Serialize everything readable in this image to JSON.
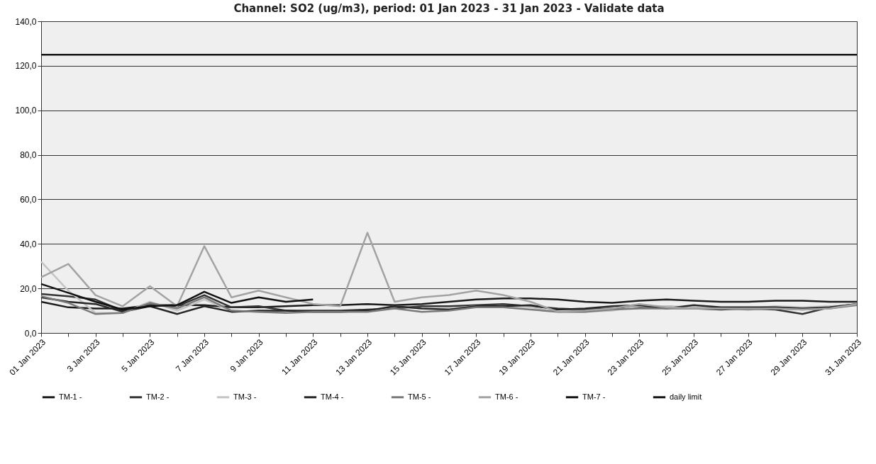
{
  "chart_data": {
    "type": "line",
    "title": "Channel: SO2 (ug/m3), period: 01 Jan 2023 - 31 Jan 2023 - Validate data",
    "categories": [
      "01 Jan 2023",
      null,
      "3 Jan 2023",
      null,
      "5 Jan 2023",
      null,
      "7 Jan 2023",
      null,
      "9 Jan 2023",
      null,
      "11 Jan 2023",
      null,
      "13 Jan 2023",
      null,
      "15 Jan 2023",
      null,
      "17 Jan 2023",
      null,
      "19 Jan 2023",
      null,
      "21 Jan 2023",
      null,
      "23 Jan 2023",
      null,
      "25 Jan 2023",
      null,
      "27 Jan 2023",
      null,
      "29 Jan 2023",
      null,
      "31 Jan 2023"
    ],
    "series": [
      {
        "name": "TM-1 -",
        "color": "#1a1a1a",
        "values": [
          14,
          11.5,
          11,
          11,
          12.5,
          12.5,
          12.5,
          11.5,
          11.5,
          12,
          12.5,
          12.5,
          13,
          12.5,
          13,
          14,
          15,
          15.5,
          15.5,
          15,
          14,
          13.5,
          14.5,
          15,
          14.5,
          14,
          14,
          14.5,
          14.5,
          14,
          14
        ]
      },
      {
        "name": "TM-2 -",
        "color": "#333333",
        "values": [
          17.5,
          16.5,
          15,
          10,
          12.5,
          12,
          17,
          11.5,
          12,
          10,
          10,
          10,
          10.5,
          11,
          12,
          12,
          12.5,
          13,
          12,
          11,
          10.5,
          11,
          11.5,
          12,
          11,
          10.5,
          11,
          10.5,
          8.5,
          11.5,
          13
        ]
      },
      {
        "name": "TM-3 -",
        "color": "#c4c4c4",
        "values": [
          32,
          19,
          9,
          9,
          14,
          10,
          15,
          10,
          9.5,
          9.5,
          null,
          null,
          9.5,
          12,
          11,
          11,
          12,
          12,
          11.5,
          9.5,
          9.5,
          10,
          12,
          12,
          11.5,
          11,
          11,
          12,
          11.5,
          12,
          12.5
        ]
      },
      {
        "name": "TM-4 -",
        "color": "#262626",
        "values": [
          16,
          14,
          13,
          9.5,
          12,
          8.5,
          12,
          9.5,
          10,
          10,
          9.5,
          9.5,
          10,
          12,
          11,
          10.5,
          12,
          12,
          12.5,
          10.5,
          11,
          12,
          12.5,
          11,
          12.5,
          11.5,
          11.5,
          11.5,
          11,
          11.5,
          13
        ]
      },
      {
        "name": "TM-5 -",
        "color": "#7a7a7a",
        "values": [
          16.5,
          13.5,
          8.5,
          9,
          13.5,
          11,
          16,
          10,
          9.5,
          9,
          9.5,
          9.5,
          9.5,
          11,
          9.5,
          10,
          11.5,
          11.5,
          10.5,
          9.5,
          9.5,
          10.5,
          11,
          11,
          11,
          11,
          10.5,
          11,
          10.5,
          11,
          12.5
        ]
      },
      {
        "name": "TM-6 -",
        "color": "#a3a3a3",
        "values": [
          25,
          31,
          17,
          12,
          21,
          12,
          39,
          16,
          19,
          16,
          13,
          12,
          45,
          14,
          16,
          17,
          19,
          17,
          14,
          9.5,
          10,
          11,
          13,
          11.5,
          11,
          11,
          11,
          11,
          10.5,
          11,
          13
        ]
      },
      {
        "name": "TM-7 -",
        "color": "#111111",
        "values": [
          22,
          18,
          14,
          10.5,
          12,
          12.5,
          18.5,
          13.5,
          16,
          14,
          15,
          null,
          null,
          null,
          null,
          null,
          null,
          null,
          null,
          null,
          null,
          null,
          null,
          null,
          null,
          null,
          null,
          null,
          null,
          null,
          null
        ]
      },
      {
        "name": "daily limit",
        "color": "#141414",
        "values": [
          125,
          125,
          125,
          125,
          125,
          125,
          125,
          125,
          125,
          125,
          125,
          125,
          125,
          125,
          125,
          125,
          125,
          125,
          125,
          125,
          125,
          125,
          125,
          125,
          125,
          125,
          125,
          125,
          125,
          125,
          125
        ]
      }
    ],
    "ylim": [
      0,
      140
    ],
    "yticks": [
      {
        "value": 0,
        "label": "0,0"
      },
      {
        "value": 20,
        "label": "20,0"
      },
      {
        "value": 40,
        "label": "40,0"
      },
      {
        "value": 60,
        "label": "60,0"
      },
      {
        "value": 80,
        "label": "80,0"
      },
      {
        "value": 100,
        "label": "100,0"
      },
      {
        "value": 120,
        "label": "120,0"
      },
      {
        "value": 140,
        "label": "140,0"
      }
    ],
    "grid": "y",
    "legend": "bottom",
    "marker": "none"
  }
}
